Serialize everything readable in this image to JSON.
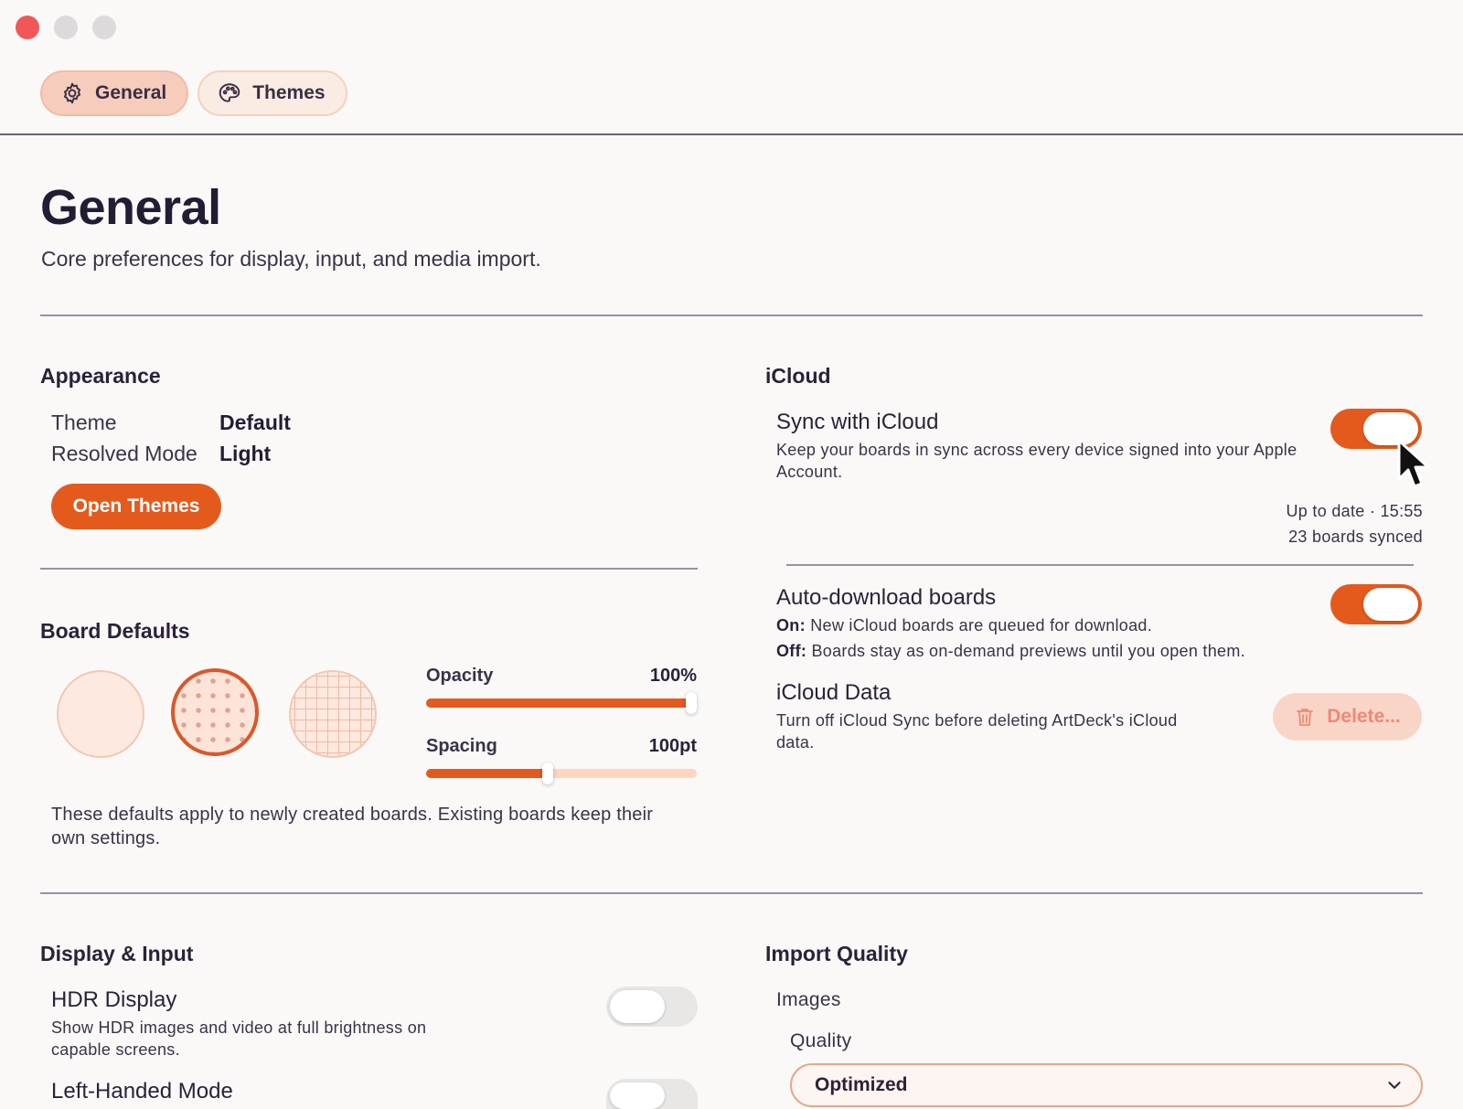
{
  "window": {
    "controls": [
      "close",
      "minimize",
      "maximize"
    ]
  },
  "tabs": [
    {
      "label": "General",
      "icon": "gear-icon",
      "active": true
    },
    {
      "label": "Themes",
      "icon": "palette-icon",
      "active": false
    }
  ],
  "header": {
    "title": "General",
    "subtitle": "Core preferences for display, input, and media import."
  },
  "appearance": {
    "title": "Appearance",
    "theme_label": "Theme",
    "theme_value": "Default",
    "mode_label": "Resolved Mode",
    "mode_value": "Light",
    "open_themes_label": "Open Themes"
  },
  "board_defaults": {
    "title": "Board Defaults",
    "patterns": [
      "plain",
      "dots",
      "grid"
    ],
    "selected_pattern": "dots",
    "opacity": {
      "label": "Opacity",
      "value": "100%",
      "fraction": 1.0
    },
    "spacing": {
      "label": "Spacing",
      "value": "100pt",
      "fraction": 0.45
    },
    "note": "These defaults apply to newly created boards. Existing boards keep their own settings."
  },
  "icloud": {
    "title": "iCloud",
    "sync": {
      "title": "Sync with iCloud",
      "description": "Keep your boards in sync across every device signed into your Apple Account.",
      "on": true,
      "status_line1": "Up to date · 15:55",
      "status_line2": "23 boards synced"
    },
    "auto_download": {
      "title": "Auto-download boards",
      "on_label": "On:",
      "on_text": "New iCloud boards are queued for download.",
      "off_label": "Off:",
      "off_text": "Boards stay as on-demand previews until you open them.",
      "on": true
    },
    "data": {
      "title": "iCloud Data",
      "description": "Turn off iCloud Sync before deleting ArtDeck's iCloud data.",
      "delete_label": "Delete..."
    }
  },
  "display_input": {
    "title": "Display & Input",
    "hdr": {
      "title": "HDR Display",
      "description": "Show HDR images and video at full brightness on capable screens.",
      "on": false
    },
    "left_handed": {
      "title": "Left-Handed Mode",
      "on": false
    }
  },
  "import_quality": {
    "title": "Import Quality",
    "images_label": "Images",
    "quality_label": "Quality",
    "quality_value": "Optimized"
  },
  "colors": {
    "accent": "#e45a1d",
    "accent_soft": "#f6cdbd",
    "text": "#2b2238"
  }
}
